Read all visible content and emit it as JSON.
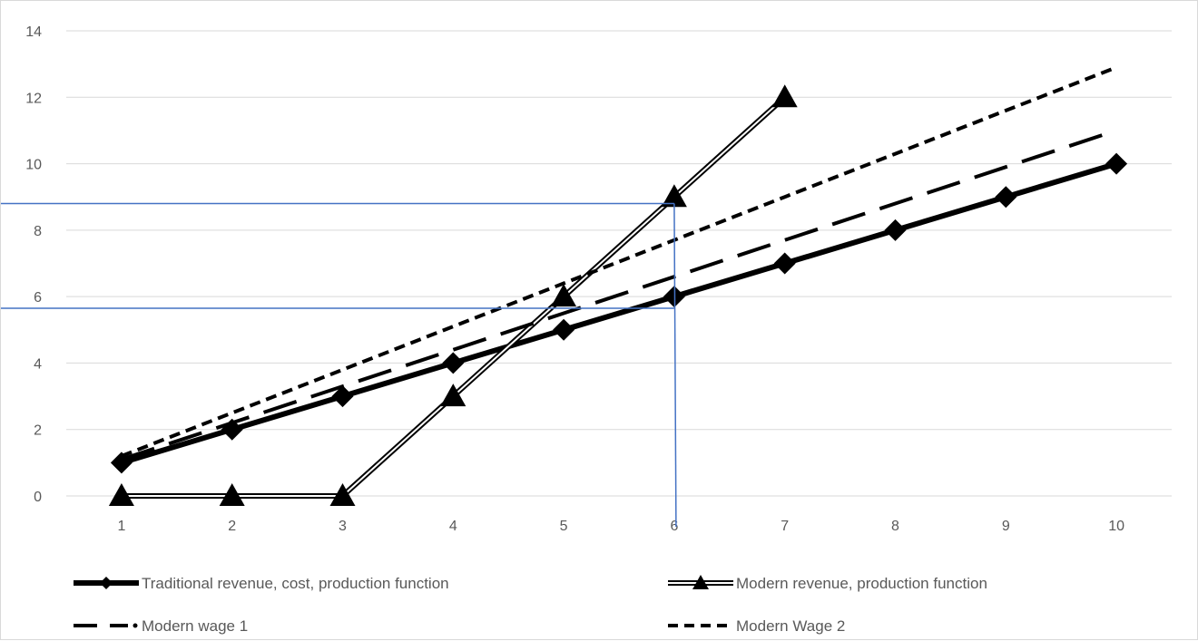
{
  "chart_data": {
    "type": "line",
    "categories": [
      1,
      2,
      3,
      4,
      5,
      6,
      7,
      8,
      9,
      10
    ],
    "ylim": [
      0,
      14
    ],
    "y_ticks": [
      0,
      2,
      4,
      6,
      8,
      10,
      12,
      14
    ],
    "grid": "horizontal",
    "legend_position": "bottom",
    "series": [
      {
        "name": "Traditional revenue, cost, production function",
        "values": [
          1,
          2,
          3,
          4,
          5,
          6,
          7,
          8,
          9,
          10
        ],
        "style": "thick-solid",
        "marker": "diamond",
        "color": "#000000"
      },
      {
        "name": "Modern revenue, production function",
        "values": [
          0,
          0,
          0,
          3,
          6,
          9,
          12,
          null,
          null,
          null
        ],
        "style": "double-line",
        "marker": "triangle",
        "color": "#000000"
      },
      {
        "name": "Modern wage 1",
        "values": [
          1.1,
          2.2,
          3.3,
          4.4,
          5.5,
          6.6,
          7.7,
          8.8,
          9.9,
          11
        ],
        "style": "long-dash",
        "marker": "none",
        "color": "#000000"
      },
      {
        "name": "Modern Wage 2",
        "values": [
          1.2,
          2.5,
          3.8,
          5.1,
          6.4,
          7.7,
          9.0,
          10.3,
          11.6,
          12.9
        ],
        "style": "short-dash",
        "marker": "none",
        "color": "#000000"
      }
    ],
    "annotations": {
      "color": "#4472c4",
      "horizontal_lines_y": [
        8.8,
        5.65
      ],
      "vertical_line_x": 6
    }
  }
}
